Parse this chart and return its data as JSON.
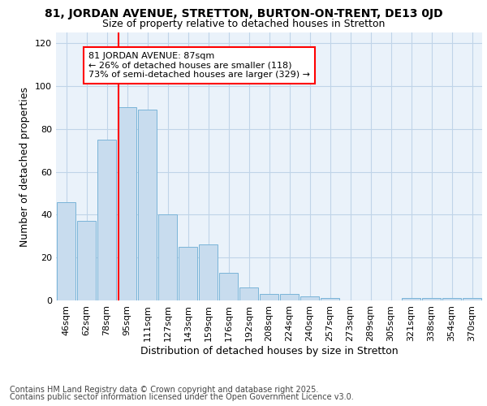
{
  "title_line1": "81, JORDAN AVENUE, STRETTON, BURTON-ON-TRENT, DE13 0JD",
  "title_line2": "Size of property relative to detached houses in Stretton",
  "xlabel": "Distribution of detached houses by size in Stretton",
  "ylabel": "Number of detached properties",
  "categories": [
    "46sqm",
    "62sqm",
    "78sqm",
    "95sqm",
    "111sqm",
    "127sqm",
    "143sqm",
    "159sqm",
    "176sqm",
    "192sqm",
    "208sqm",
    "224sqm",
    "240sqm",
    "257sqm",
    "273sqm",
    "289sqm",
    "305sqm",
    "321sqm",
    "338sqm",
    "354sqm",
    "370sqm"
  ],
  "values": [
    46,
    37,
    75,
    90,
    89,
    40,
    25,
    26,
    13,
    6,
    3,
    3,
    2,
    1,
    0,
    0,
    0,
    1,
    1,
    1,
    1
  ],
  "bar_color": "#c8dcee",
  "bar_edge_color": "#7ab4d8",
  "grid_color": "#c0d4e8",
  "background_color": "#eaf2fa",
  "red_line_x": 2.57,
  "annotation_text": "81 JORDAN AVENUE: 87sqm\n← 26% of detached houses are smaller (118)\n73% of semi-detached houses are larger (329) →",
  "annotation_box_color": "white",
  "annotation_box_edge": "red",
  "ylim": [
    0,
    125
  ],
  "yticks": [
    0,
    20,
    40,
    60,
    80,
    100,
    120
  ],
  "footer_line1": "Contains HM Land Registry data © Crown copyright and database right 2025.",
  "footer_line2": "Contains public sector information licensed under the Open Government Licence v3.0.",
  "title_fontsize": 10,
  "subtitle_fontsize": 9,
  "label_fontsize": 9,
  "tick_fontsize": 8,
  "footer_fontsize": 7,
  "annot_fontsize": 8
}
